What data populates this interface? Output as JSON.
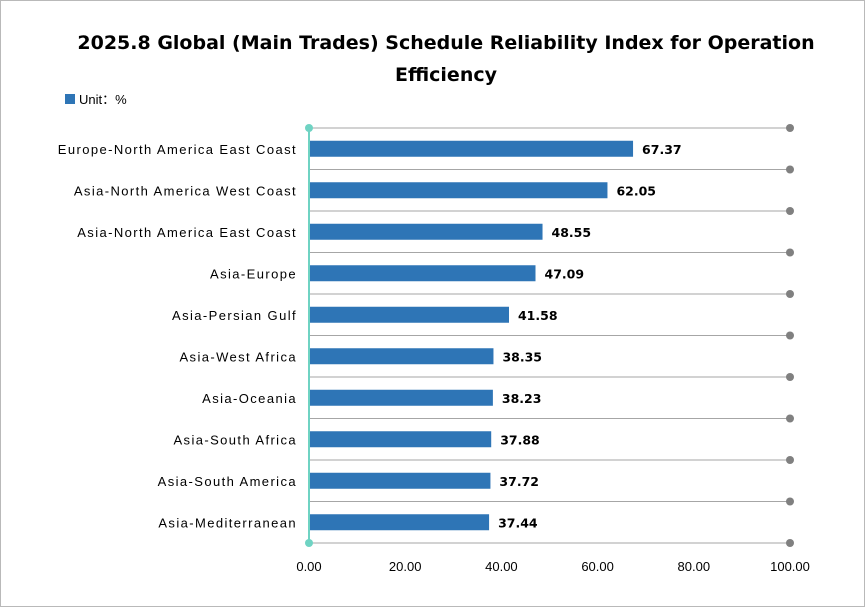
{
  "chart_data": {
    "type": "bar",
    "orientation": "horizontal",
    "title": "2025.8 Global (Main Trades) Schedule Reliability Index for Operation Efficiency",
    "legend": "Unit：%",
    "legend_position": "top-left",
    "categories": [
      "Europe-North America East Coast",
      "Asia-North America West Coast",
      "Asia-North America East Coast",
      "Asia-Europe",
      "Asia-Persian Gulf",
      "Asia-West Africa",
      "Asia-Oceania",
      "Asia-South Africa",
      "Asia-South America",
      "Asia-Mediterranean"
    ],
    "values": [
      67.37,
      62.05,
      48.55,
      47.09,
      41.58,
      38.35,
      38.23,
      37.88,
      37.72,
      37.44
    ],
    "value_labels": [
      "67.37",
      "62.05",
      "48.55",
      "47.09",
      "41.58",
      "38.35",
      "38.23",
      "37.88",
      "37.72",
      "37.44"
    ],
    "xlim": [
      0,
      100
    ],
    "xticks": [
      "0.00",
      "20.00",
      "40.00",
      "60.00",
      "80.00",
      "100.00"
    ],
    "grid": true,
    "colors": {
      "bar": "#2e75b6",
      "grid": "#a6a6a6",
      "axis": "#6fd3c3",
      "marker": "#808080"
    }
  }
}
